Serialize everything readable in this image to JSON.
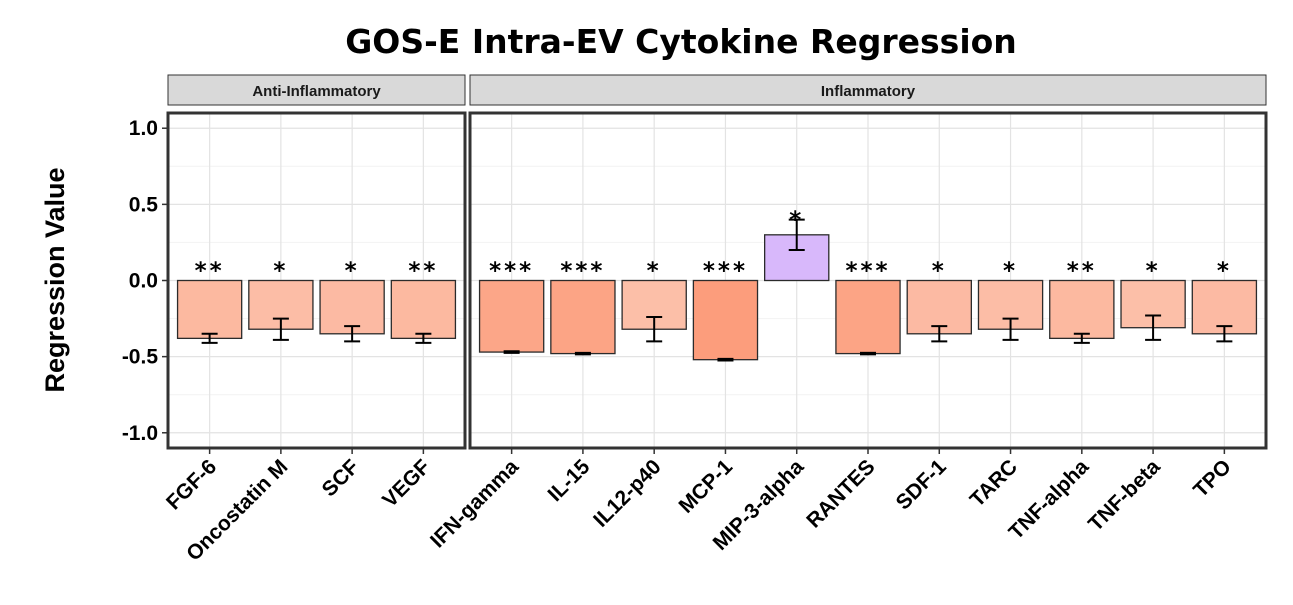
{
  "chart_data": {
    "type": "bar",
    "title": "GOS-E Intra-EV Cytokine Regression",
    "ylabel": "Regression Value",
    "xlabel": "",
    "ylim": [
      -1.1,
      1.1
    ],
    "yticks": [
      "1.0",
      "0.5",
      "0.0",
      "-0.5",
      "-1.0"
    ],
    "ytick_values": [
      1.0,
      0.5,
      0.0,
      -0.5,
      -1.0
    ],
    "grid": true,
    "panels": [
      {
        "label": "Anti-Inflammatory",
        "categories": [
          "FGF-6",
          "Oncostatin M",
          "SCF",
          "VEGF"
        ],
        "values": [
          -0.38,
          -0.32,
          -0.35,
          -0.38
        ],
        "errors": [
          0.03,
          0.07,
          0.05,
          0.03
        ],
        "significance": [
          "**",
          "*",
          "*",
          "**"
        ],
        "colors": [
          "#fcb9a0",
          "#fcbda6",
          "#fcbaa3",
          "#fcb9a0"
        ]
      },
      {
        "label": "Inflammatory",
        "categories": [
          "IFN-gamma",
          "IL-15",
          "IL12-p40",
          "MCP-1",
          "MIP-3-alpha",
          "RANTES",
          "SDF-1",
          "TARC",
          "TNF-alpha",
          "TNF-beta",
          "TPO"
        ],
        "values": [
          -0.47,
          -0.48,
          -0.32,
          -0.52,
          0.3,
          -0.48,
          -0.35,
          -0.32,
          -0.38,
          -0.31,
          -0.35
        ],
        "errors": [
          0.005,
          0.005,
          0.08,
          0.005,
          0.1,
          0.005,
          0.05,
          0.07,
          0.03,
          0.08,
          0.05
        ],
        "significance": [
          "***",
          "***",
          "*",
          "***",
          "*",
          "***",
          "*",
          "*",
          "**",
          "*",
          "*"
        ],
        "colors": [
          "#fca688",
          "#fca485",
          "#fcbfa8",
          "#fc9d7c",
          "#d8b8fb",
          "#fca485",
          "#fcbaa3",
          "#fcbda6",
          "#fcb9a0",
          "#fcbfa8",
          "#fcbaa3"
        ]
      }
    ]
  }
}
